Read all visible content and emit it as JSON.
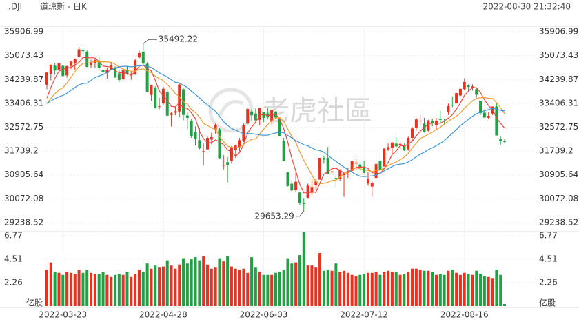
{
  "header": {
    "symbol": ".DJI",
    "name": "道琼斯 - 日K",
    "timestamp": "2022-08-30 21:32:40"
  },
  "watermark": "老虎社區",
  "chart_data": {
    "type": "candlestick",
    "categories": [
      null,
      null,
      null,
      null,
      "2022-03-23",
      null,
      null,
      null,
      null,
      null,
      null,
      null,
      null,
      null,
      null,
      null,
      null,
      null,
      null,
      null,
      null,
      null,
      null,
      null,
      null,
      null,
      null,
      null,
      null,
      "2022-04-28",
      null,
      null,
      null,
      null,
      null,
      null,
      null,
      null,
      null,
      null,
      null,
      null,
      null,
      null,
      null,
      null,
      null,
      null,
      null,
      null,
      null,
      null,
      null,
      null,
      "2022-06-03",
      null,
      null,
      null,
      null,
      null,
      null,
      null,
      null,
      null,
      null,
      null,
      null,
      null,
      null,
      null,
      null,
      null,
      null,
      null,
      null,
      null,
      null,
      null,
      null,
      "2022-07-12",
      null,
      null,
      null,
      null,
      null,
      null,
      null,
      null,
      null,
      null,
      null,
      null,
      null,
      null,
      null,
      null,
      null,
      null,
      null,
      null,
      null,
      null,
      null,
      null,
      "2022-08-16",
      null,
      null,
      null,
      null,
      null,
      null,
      null,
      null,
      null,
      null
    ],
    "open": [
      34060,
      34430,
      34720,
      34580,
      34720,
      34380,
      34710,
      34800,
      35040,
      35280,
      35210,
      34750,
      34800,
      34900,
      34560,
      34460,
      34570,
      34640,
      34450,
      34250,
      34580,
      34380,
      34430,
      35010,
      35210,
      34790,
      33700,
      33950,
      33300,
      33400,
      33800,
      33000,
      33080,
      33120,
      33900,
      32980,
      32800,
      32400,
      32120,
      31700,
      31800,
      32140,
      32480,
      32500,
      31250,
      31350,
      31400,
      31770,
      31870,
      32100,
      32700,
      33120,
      33050,
      32830,
      33100,
      33050,
      32800,
      33120,
      32850,
      32100,
      31000,
      30600,
      30380,
      30290,
      29920,
      30100,
      30300,
      30550,
      30740,
      31500,
      31500,
      30990,
      30800,
      30780,
      30900,
      30980,
      31050,
      31300,
      31270,
      31200,
      30600,
      30500,
      30800,
      31400,
      31200,
      31800,
      31850,
      32000,
      31950,
      31950,
      31800,
      32200,
      32550,
      32790,
      32700,
      32450,
      32800,
      32650,
      32850,
      32800,
      33100,
      33350,
      33400,
      33680,
      33900,
      34050,
      33960,
      33900,
      33500,
      33080,
      32900,
      33050,
      33300,
      32150,
      32100
    ],
    "high": [
      34490,
      34760,
      34800,
      34880,
      34740,
      34720,
      34900,
      34970,
      35372,
      35340,
      35250,
      34930,
      34950,
      35050,
      34700,
      34650,
      34840,
      34700,
      34590,
      34620,
      34700,
      34520,
      34970,
      35240,
      35492.22,
      34840,
      34060,
      34000,
      33600,
      34000,
      33900,
      33100,
      33300,
      34100,
      33950,
      33100,
      32850,
      32600,
      32560,
      32000,
      32250,
      32380,
      32700,
      32550,
      31600,
      31530,
      31920,
      31950,
      32200,
      32700,
      33220,
      33200,
      33230,
      33250,
      33100,
      33250,
      33200,
      33140,
      32900,
      32200,
      31000,
      30700,
      31000,
      30300,
      30100,
      30600,
      30750,
      30770,
      31500,
      31580,
      31880,
      31120,
      30900,
      31100,
      30970,
      31160,
      31400,
      31450,
      31350,
      31400,
      31000,
      30700,
      31320,
      31660,
      31830,
      32000,
      32050,
      32230,
      32050,
      32000,
      32250,
      32580,
      32900,
      32990,
      32900,
      32830,
      32880,
      32900,
      33150,
      32850,
      33400,
      33640,
      33770,
      33920,
      34280,
      34070,
      34070,
      33930,
      33500,
      33200,
      33100,
      33300,
      33400,
      32250,
      32150
    ],
    "low": [
      33900,
      34210,
      34400,
      34530,
      34330,
      34300,
      34600,
      34580,
      35000,
      35100,
      34670,
      34640,
      34650,
      34580,
      34300,
      34270,
      34570,
      34300,
      34140,
      34200,
      34400,
      34230,
      34400,
      34980,
      34750,
      33800,
      33500,
      33220,
      33200,
      33350,
      32960,
      32600,
      32990,
      32930,
      32810,
      32500,
      32200,
      31930,
      31800,
      31230,
      31780,
      31980,
      32340,
      31460,
      31100,
      30640,
      31300,
      31500,
      31730,
      32060,
      32690,
      32800,
      32700,
      32640,
      32750,
      32850,
      32650,
      32850,
      32270,
      31380,
      30500,
      30300,
      30300,
      29860,
      29653.29,
      30100,
      30200,
      30400,
      30740,
      31300,
      30940,
      30880,
      30500,
      30700,
      30140,
      30800,
      31040,
      31060,
      31050,
      30960,
      30530,
      30140,
      30800,
      31050,
      31200,
      31750,
      31630,
      31850,
      31800,
      31740,
      31750,
      32100,
      32450,
      32640,
      32380,
      32400,
      32600,
      32500,
      32700,
      32640,
      33000,
      33270,
      33400,
      33650,
      33880,
      33820,
      33850,
      33600,
      33000,
      32900,
      32850,
      33000,
      32280,
      31950,
      32000
    ],
    "close": [
      34481,
      34755,
      34553,
      34808,
      34359,
      34708,
      34862,
      34955,
      35294,
      35229,
      34678,
      34818,
      34922,
      34642,
      34497,
      34584,
      34721,
      34309,
      34220,
      34565,
      34452,
      34412,
      34911,
      35161,
      34793,
      33811,
      34049,
      33241,
      33302,
      33916,
      32977,
      33062,
      33129,
      34061,
      32998,
      32899,
      32246,
      32161,
      31834,
      31730,
      32197,
      32223,
      32655,
      31490,
      31253,
      31262,
      31880,
      31929,
      32120,
      32637,
      33213,
      32990,
      32813,
      33248,
      32900,
      32916,
      33180,
      32910,
      32272,
      31393,
      30517,
      30365,
      30668,
      29927,
      29889,
      30530,
      30484,
      30677,
      31500,
      31439,
      30947,
      31029,
      30775,
      31097,
      30968,
      31038,
      31385,
      31338,
      31174,
      30982,
      30773,
      30630,
      31289,
      31073,
      31828,
      31875,
      32037,
      31899,
      31990,
      31762,
      32198,
      32530,
      32845,
      32798,
      32397,
      32813,
      32727,
      32803,
      32833,
      32775,
      33310,
      33337,
      33761,
      33913,
      34152,
      33981,
      33999,
      33707,
      33064,
      32910,
      32970,
      33292,
      32283,
      32099,
      32060
    ],
    "up_color": "#e8311f",
    "down_color": "#1fa342",
    "series": [
      {
        "color": "#e8463a",
        "values": [
          33590,
          33960,
          34280,
          34530,
          34590,
          34640,
          34660,
          34740,
          34840,
          35010,
          35000,
          35000,
          34990,
          34860,
          34710,
          34690,
          34670,
          34550,
          34470,
          34480,
          34450,
          34390,
          34510,
          34700,
          34740,
          34620,
          34540,
          34210,
          33840,
          33660,
          33500,
          33300,
          33280,
          33430,
          33250,
          33230,
          33070,
          32870,
          32430,
          32170,
          32030,
          32030,
          32130,
          32060,
          31960,
          31780,
          31710,
          31560,
          31690,
          31970,
          32360,
          32580,
          32750,
          32980,
          33030,
          32970,
          33010,
          33030,
          32840,
          32530,
          32050,
          31490,
          31040,
          30580,
          30280,
          30280,
          30300,
          30300,
          30620,
          30930,
          31010,
          31120,
          31140,
          31060,
          30970,
          30980,
          31060,
          31170,
          31180,
          31180,
          31130,
          30980,
          30970,
          30950,
          31120,
          31340,
          31620,
          31740,
          31930,
          31910,
          31980,
          32080,
          32270,
          32430,
          32560,
          32680,
          32720,
          32710,
          32710,
          32790,
          32890,
          33010,
          33200,
          33420,
          33690,
          33830,
          33960,
          33950,
          33780,
          33530,
          33330,
          33190,
          32900,
          32710,
          32540
        ]
      },
      {
        "color": "#f29b2e",
        "values": [
          33400,
          33580,
          33740,
          33870,
          33950,
          34120,
          34310,
          34510,
          34690,
          34800,
          34820,
          34830,
          34870,
          34850,
          34860,
          34850,
          34840,
          34770,
          34670,
          34600,
          34570,
          34530,
          34530,
          34590,
          34610,
          34540,
          34470,
          34360,
          34270,
          34200,
          34060,
          33920,
          33750,
          33640,
          33460,
          33370,
          33190,
          33080,
          32930,
          32710,
          32630,
          32550,
          32500,
          32250,
          32070,
          31910,
          31870,
          31850,
          31880,
          31970,
          32070,
          32150,
          32160,
          32340,
          32500,
          32670,
          32800,
          32890,
          32910,
          32780,
          32510,
          32250,
          32040,
          31710,
          31410,
          31170,
          30900,
          30670,
          30600,
          30610,
          30650,
          30710,
          30720,
          30840,
          30950,
          31000,
          31090,
          31160,
          31120,
          31080,
          31060,
          31020,
          31070,
          31070,
          31150,
          31240,
          31300,
          31360,
          31440,
          31520,
          31660,
          31850,
          32010,
          32180,
          32240,
          32330,
          32400,
          32490,
          32570,
          32680,
          32790,
          32870,
          32960,
          33070,
          33240,
          33360,
          33490,
          33580,
          33600,
          33610,
          33580,
          33580,
          33430,
          33250,
          33040
        ]
      },
      {
        "color": "#3b95d6",
        "values": [
          33400,
          33490,
          33570,
          33640,
          33680,
          33760,
          33860,
          33960,
          34050,
          34100,
          34110,
          34210,
          34310,
          34360,
          34410,
          34490,
          34580,
          34640,
          34680,
          34700,
          34700,
          34680,
          34700,
          34720,
          34740,
          34700,
          34660,
          34570,
          34470,
          34400,
          34320,
          34230,
          34140,
          34120,
          34040,
          33960,
          33830,
          33720,
          33600,
          33460,
          33350,
          33240,
          33130,
          32950,
          32770,
          32640,
          32530,
          32470,
          32410,
          32340,
          32350,
          32350,
          32330,
          32300,
          32290,
          32290,
          32340,
          32370,
          32400,
          32380,
          32290,
          32200,
          32100,
          32030,
          31960,
          31920,
          31850,
          31780,
          31760,
          31700,
          31580,
          31480,
          31380,
          31280,
          31180,
          31090,
          31000,
          30920,
          30860,
          30850,
          30860,
          30870,
          30900,
          30960,
          31050,
          31120,
          31200,
          31260,
          31280,
          31300,
          31360,
          31440,
          31540,
          31630,
          31700,
          31790,
          31850,
          31930,
          32010,
          32100,
          32230,
          32360,
          32490,
          32630,
          32740,
          32850,
          32950,
          33040,
          33090,
          33150,
          33190,
          33230,
          33200,
          33160,
          33140
        ]
      }
    ],
    "ylim": [
      29238.52,
      35906.99
    ],
    "yticks": [
      29238.52,
      30072.08,
      30905.64,
      31739.2,
      32572.75,
      33406.31,
      34239.87,
      35073.43,
      35906.99
    ],
    "grid": true,
    "volume": [
      3.5,
      4.2,
      3.3,
      3.2,
      3.0,
      3.3,
      3.2,
      3.1,
      3.5,
      3.2,
      3.5,
      3.2,
      3.1,
      3.1,
      3.3,
      3.0,
      2.8,
      3.0,
      3.1,
      3.0,
      3.3,
      2.8,
      3.1,
      3.5,
      3.3,
      4.1,
      3.6,
      3.9,
      3.7,
      3.8,
      4.4,
      3.9,
      3.6,
      4.0,
      4.6,
      4.1,
      4.5,
      4.7,
      4.4,
      4.8,
      4.0,
      3.6,
      3.7,
      4.6,
      4.3,
      4.8,
      3.8,
      3.6,
      3.5,
      3.6,
      3.2,
      4.7,
      3.7,
      3.3,
      3.0,
      3.0,
      3.0,
      3.2,
      3.3,
      3.5,
      4.6,
      4.1,
      4.2,
      4.9,
      7.1,
      3.9,
      3.9,
      3.7,
      5.1,
      3.4,
      3.5,
      3.4,
      4.1,
      3.3,
      3.4,
      3.2,
      3.0,
      2.9,
      3.0,
      3.1,
      3.2,
      3.2,
      3.3,
      3.0,
      3.3,
      3.4,
      3.3,
      3.3,
      3.0,
      3.1,
      3.3,
      3.6,
      3.6,
      3.5,
      3.4,
      3.4,
      3.3,
      3.0,
      3.1,
      3.0,
      3.4,
      3.5,
      3.2,
      3.0,
      3.2,
      3.1,
      3.0,
      3.4,
      3.1,
      2.9,
      2.8,
      2.7,
      3.5,
      3.0,
      0.2
    ],
    "volume_label": "亿股",
    "volume_ylim": [
      0,
      7.2
    ],
    "volume_yticks": [
      2.26,
      4.51,
      6.77
    ]
  }
}
